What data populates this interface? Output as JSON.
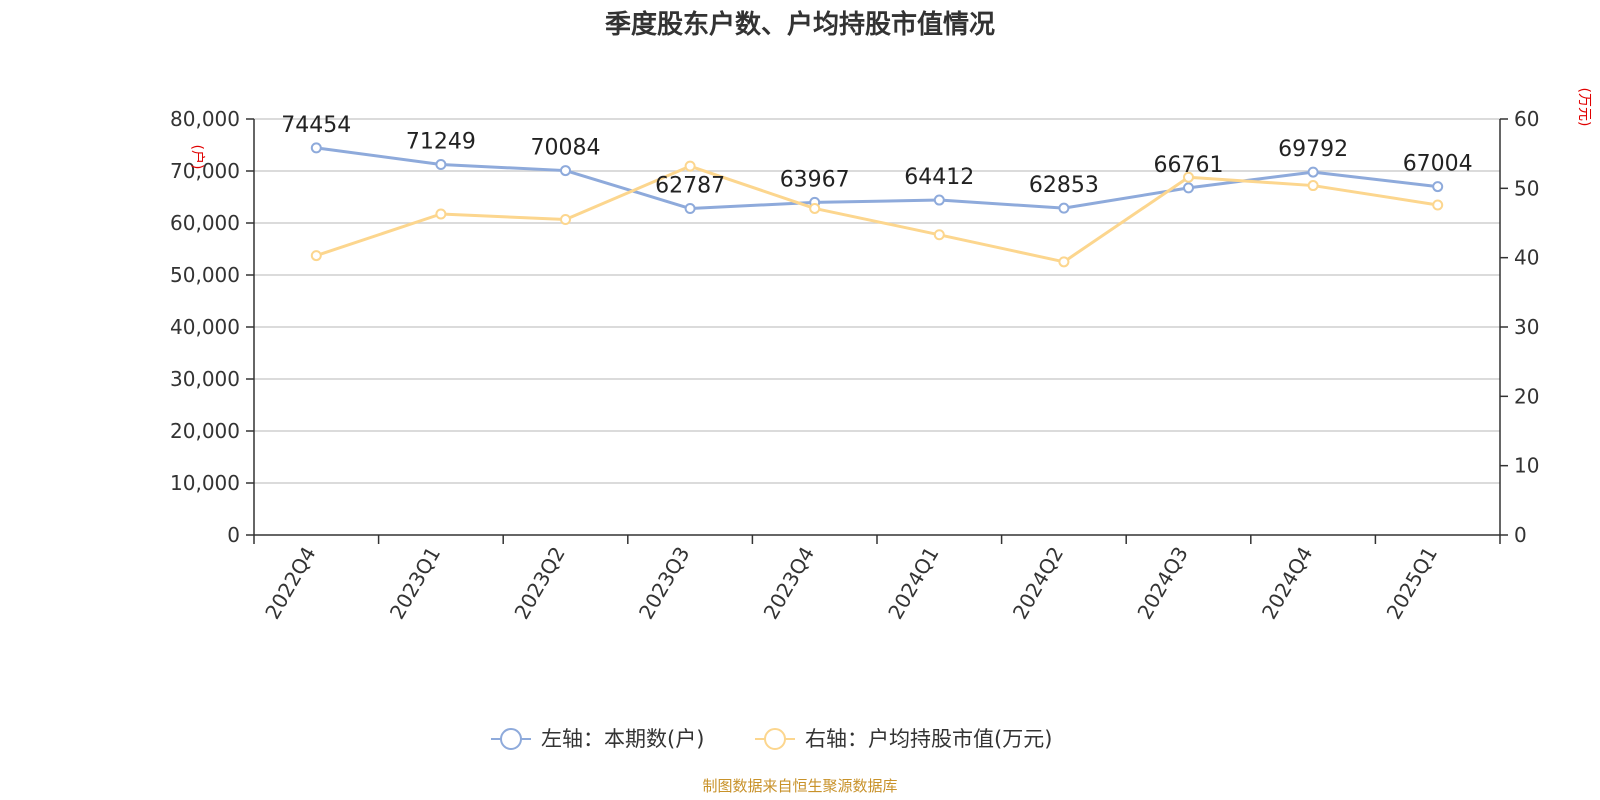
{
  "chart_data": {
    "type": "line",
    "title": "季度股东户数、户均持股市值情况",
    "categories": [
      "2022Q4",
      "2023Q1",
      "2023Q2",
      "2023Q3",
      "2023Q4",
      "2024Q1",
      "2024Q2",
      "2024Q3",
      "2024Q4",
      "2025Q1"
    ],
    "series": [
      {
        "name": "左轴：本期数(户)",
        "axis": "left",
        "color": "#8eaadb",
        "values": [
          74454,
          71249,
          70084,
          62787,
          63967,
          64412,
          62853,
          66761,
          69792,
          67004
        ],
        "labels": [
          "74454",
          "71249",
          "70084",
          "62787",
          "63967",
          "64412",
          "62853",
          "66761",
          "69792",
          "67004"
        ]
      },
      {
        "name": "右轴：户均持股市值(万元)",
        "axis": "right",
        "color": "#fcd68e",
        "values": [
          40.3,
          46.3,
          45.5,
          53.2,
          47.1,
          43.3,
          39.4,
          51.6,
          50.4,
          47.6
        ]
      }
    ],
    "left_axis": {
      "unit": "(户)",
      "ylim": [
        0,
        80000
      ],
      "ticks": [
        0,
        10000,
        20000,
        30000,
        40000,
        50000,
        60000,
        70000,
        80000
      ],
      "tick_labels": [
        "0",
        "10,000",
        "20,000",
        "30,000",
        "40,000",
        "50,000",
        "60,000",
        "70,000",
        "80,000"
      ]
    },
    "right_axis": {
      "unit": "(万元)",
      "ylim": [
        0,
        60
      ],
      "ticks": [
        0,
        10,
        20,
        30,
        40,
        50,
        60
      ],
      "tick_labels": [
        "0",
        "10",
        "20",
        "30",
        "40",
        "50",
        "60"
      ]
    },
    "grid": true,
    "legend_position": "bottom-center",
    "source": "制图数据来自恒生聚源数据库"
  }
}
